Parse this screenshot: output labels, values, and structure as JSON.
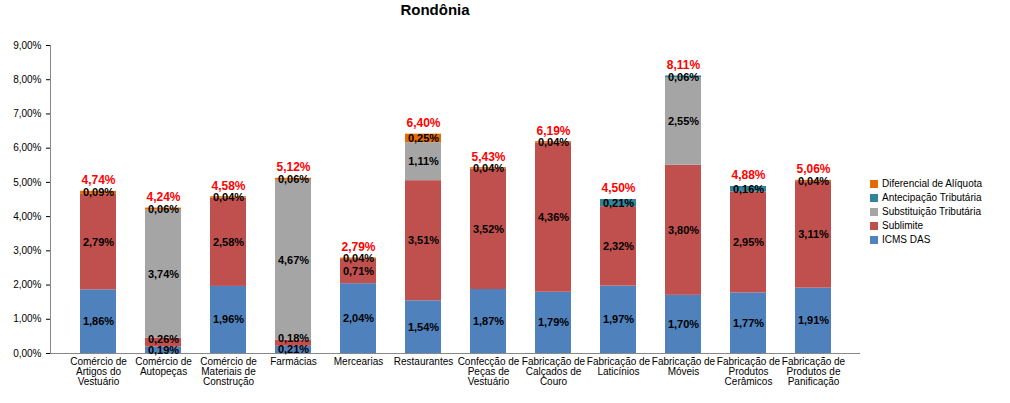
{
  "chart_data": {
    "type": "bar",
    "title": "Rondônia",
    "categories": [
      "Comércio de Artigos do Vestuário",
      "Comércio de Autopeças",
      "Comércio de Materiais de Construção",
      "Farmácias",
      "Mercearias",
      "Restaurantes",
      "Confecção de Peças de Vestuário",
      "Fabricação de Calçados de Couro",
      "Fabricação de Laticínios",
      "Fabricação de Móveis",
      "Fabricação de Produtos Cerâmicos",
      "Fabricação de Produtos de Panificação"
    ],
    "series": [
      {
        "name": "ICMS DAS",
        "color": "#4f81bd",
        "values": [
          1.86,
          0.19,
          1.96,
          0.21,
          2.04,
          1.54,
          1.87,
          1.79,
          1.97,
          1.7,
          1.77,
          1.91
        ],
        "value_labels": [
          "1,86%",
          "0,19%",
          "1,96%",
          "0,21%",
          "2,04%",
          "1,54%",
          "1,87%",
          "1,79%",
          "1,97%",
          "1,70%",
          "1,77%",
          "1,91%"
        ]
      },
      {
        "name": "Sublimite",
        "color": "#c0504d",
        "values": [
          2.79,
          0.26,
          2.58,
          0.18,
          0.71,
          3.51,
          3.52,
          4.36,
          2.32,
          3.8,
          2.95,
          3.11
        ],
        "value_labels": [
          "2,79%",
          "0,26%",
          "2,58%",
          "0,18%",
          "0,71%",
          "3,51%",
          "3,52%",
          "4,36%",
          "2,32%",
          "3,80%",
          "2,95%",
          "3,11%"
        ]
      },
      {
        "name": "Substituição Tributária",
        "color": "#a5a5a5",
        "values": [
          null,
          3.74,
          null,
          4.67,
          null,
          1.11,
          null,
          null,
          null,
          2.55,
          null,
          null
        ],
        "value_labels": [
          null,
          "3,74%",
          null,
          "4,67%",
          null,
          "1,11%",
          null,
          null,
          null,
          "2,55%",
          null,
          null
        ]
      },
      {
        "name": "Antecipação Tributária",
        "color": "#31849b",
        "values": [
          null,
          null,
          null,
          null,
          null,
          null,
          null,
          null,
          0.21,
          0.06,
          0.16,
          null
        ],
        "value_labels": [
          null,
          null,
          null,
          null,
          null,
          null,
          null,
          null,
          "0,21%",
          "0,06%",
          "0,16%",
          null
        ]
      },
      {
        "name": "Diferencial de Alíquota",
        "color": "#e36c09",
        "values": [
          0.09,
          0.06,
          0.04,
          0.06,
          0.04,
          0.25,
          0.04,
          0.04,
          null,
          null,
          null,
          0.04
        ],
        "value_labels": [
          "0,09%",
          "0,06%",
          "0,04%",
          "0,06%",
          "0,04%",
          "0,25%",
          "0,04%",
          "0,04%",
          null,
          null,
          null,
          "0,04%"
        ]
      }
    ],
    "totals": [
      4.74,
      4.24,
      4.58,
      5.12,
      2.79,
      6.4,
      5.43,
      6.19,
      4.5,
      8.11,
      4.88,
      5.06
    ],
    "total_labels": [
      "4,74%",
      "4,24%",
      "4,58%",
      "5,12%",
      "2,79%",
      "6,40%",
      "5,43%",
      "6,19%",
      "4,50%",
      "8,11%",
      "4,88%",
      "5,06%"
    ],
    "ylim": [
      0,
      9
    ],
    "yticks": [
      {
        "value": 0,
        "label": "0,00%"
      },
      {
        "value": 1,
        "label": "1,00%"
      },
      {
        "value": 2,
        "label": "2,00%"
      },
      {
        "value": 3,
        "label": "3,00%"
      },
      {
        "value": 4,
        "label": "4,00%"
      },
      {
        "value": 5,
        "label": "5,00%"
      },
      {
        "value": 6,
        "label": "6,00%"
      },
      {
        "value": 7,
        "label": "7,00%"
      },
      {
        "value": 8,
        "label": "8,00%"
      },
      {
        "value": 9,
        "label": "9,00%"
      }
    ],
    "stacked": true,
    "data_labels": true,
    "grid": false,
    "legend": "right"
  }
}
